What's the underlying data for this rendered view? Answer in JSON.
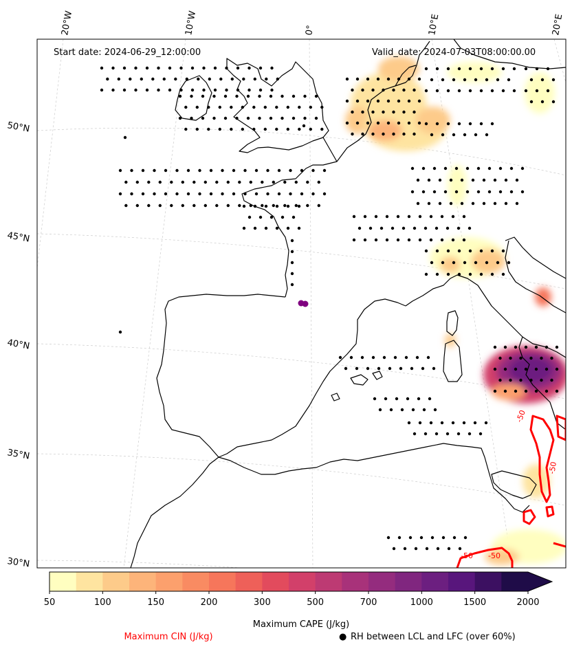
{
  "header": {
    "start_date": "Start date: 2024-06-29_12:00:00",
    "valid_date": "Valid_date: 2024-07-03T08:00:00.00"
  },
  "lon_labels": [
    "20°W",
    "10°W",
    "0°",
    "10°E",
    "20°E"
  ],
  "lat_labels": [
    "50°N",
    "45°N",
    "40°N",
    "35°N",
    "30°N"
  ],
  "colorbar": {
    "title": "Maximum CAPE (J/kg)",
    "tick_labels": [
      "50",
      "100",
      "150",
      "200",
      "300",
      "500",
      "700",
      "1000",
      "1500",
      "2000"
    ],
    "colors": [
      "#fffec0",
      "#fee4a0",
      "#fdcb8a",
      "#fdb47a",
      "#fca06d",
      "#f98b62",
      "#f6765b",
      "#ee6059",
      "#e24b5d",
      "#d2406a",
      "#bd3a73",
      "#a8327a",
      "#942c7e",
      "#80267f",
      "#6c1f80",
      "#58167c",
      "#3c1061",
      "#1f0c48"
    ]
  },
  "legend": {
    "cin_label": "Maximum CIN (J/kg)",
    "cin_color": "#ff0000",
    "rh_label": "RH between LCL and LFC (over 60%)",
    "rh_marker": "●"
  },
  "cin_contour_labels": [
    "-50",
    "-50",
    "-50",
    "-50"
  ],
  "colors": {
    "coastline": "#000000",
    "cin_contour": "#ff0000",
    "location_marker": "#800080",
    "gridline": "#cccccc"
  }
}
